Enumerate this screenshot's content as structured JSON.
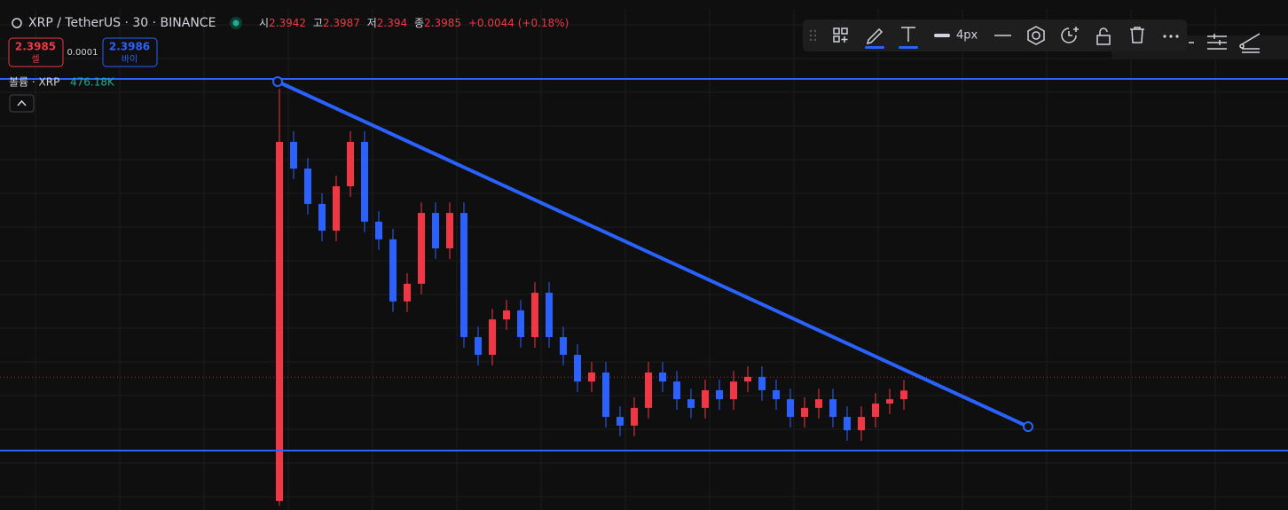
{
  "chart_data": {
    "type": "candlestick",
    "title": "XRP / TetherUS · 30 · BINANCE",
    "ohlc_labels": {
      "open": "시",
      "high": "고",
      "low": "저",
      "close": "종"
    },
    "ohlc": {
      "open": 2.3942,
      "high": 2.3987,
      "low": 2.394,
      "close": 2.3985
    },
    "change": "+0.0044 (+0.18%)",
    "sell": {
      "price": 2.3985,
      "label": "셀"
    },
    "spread": 0.0001,
    "buy": {
      "price": 2.3986,
      "label": "바이"
    },
    "volume_label": "볼륨 · XRP",
    "volume": "476.18K",
    "line_width": "4px",
    "up_color": "#f23645",
    "down_color": "#2962ff",
    "ylim": [
      2.36,
      2.52
    ],
    "candles": [
      [
        2.3586,
        2.4914,
        2.3571,
        2.4743
      ],
      [
        2.4743,
        2.4777,
        2.4623,
        2.4657
      ],
      [
        2.4657,
        2.4691,
        2.4509,
        2.4543
      ],
      [
        2.4543,
        2.4577,
        2.4423,
        2.4457
      ],
      [
        2.4457,
        2.4634,
        2.4423,
        2.46
      ],
      [
        2.46,
        2.4777,
        2.4566,
        2.4743
      ],
      [
        2.4743,
        2.4777,
        2.4452,
        2.4486
      ],
      [
        2.4486,
        2.452,
        2.4395,
        2.4429
      ],
      [
        2.4429,
        2.4463,
        2.4195,
        2.4229
      ],
      [
        2.4229,
        2.432,
        2.4195,
        2.4286
      ],
      [
        2.4286,
        2.4548,
        2.4252,
        2.4514
      ],
      [
        2.4514,
        2.4548,
        2.4366,
        2.44
      ],
      [
        2.44,
        2.4548,
        2.4366,
        2.4514
      ],
      [
        2.4514,
        2.4548,
        2.408,
        2.4114
      ],
      [
        2.4114,
        2.4148,
        2.4023,
        2.4057
      ],
      [
        2.4057,
        2.4205,
        2.4023,
        2.4171
      ],
      [
        2.4171,
        2.4234,
        2.4137,
        2.42
      ],
      [
        2.42,
        2.4234,
        2.408,
        2.4114
      ],
      [
        2.4114,
        2.4291,
        2.408,
        2.4257
      ],
      [
        2.4257,
        2.4291,
        2.408,
        2.4114
      ],
      [
        2.4114,
        2.4148,
        2.4023,
        2.4057
      ],
      [
        2.4057,
        2.4091,
        2.3937,
        2.3971
      ],
      [
        2.3971,
        2.4034,
        2.3937,
        2.4
      ],
      [
        2.4,
        2.4034,
        2.3823,
        2.3857
      ],
      [
        2.3857,
        2.3891,
        2.3795,
        2.3829
      ],
      [
        2.3829,
        2.392,
        2.3795,
        2.3886
      ],
      [
        2.3886,
        2.4034,
        2.3852,
        2.4
      ],
      [
        2.4,
        2.4034,
        2.3937,
        2.3971
      ],
      [
        2.3971,
        2.4005,
        2.388,
        2.3914
      ],
      [
        2.3914,
        2.3948,
        2.3852,
        2.3886
      ],
      [
        2.3886,
        2.3977,
        2.3852,
        2.3943
      ],
      [
        2.3943,
        2.3977,
        2.388,
        2.3914
      ],
      [
        2.3914,
        2.4005,
        2.388,
        2.3971
      ],
      [
        2.3971,
        2.402,
        2.3937,
        2.3986
      ],
      [
        2.3986,
        2.402,
        2.3909,
        2.3943
      ],
      [
        2.3943,
        2.3977,
        2.388,
        2.3914
      ],
      [
        2.3914,
        2.3948,
        2.3823,
        2.3857
      ],
      [
        2.3857,
        2.392,
        2.3823,
        2.3886
      ],
      [
        2.3886,
        2.3948,
        2.3852,
        2.3914
      ],
      [
        2.3914,
        2.3948,
        2.3823,
        2.3857
      ],
      [
        2.3857,
        2.3891,
        2.378,
        2.3814
      ],
      [
        2.3814,
        2.3891,
        2.378,
        2.3857
      ],
      [
        2.3857,
        2.3934,
        2.3823,
        2.39
      ],
      [
        2.39,
        2.3948,
        2.3866,
        2.3914
      ],
      [
        2.3914,
        2.3976,
        2.388,
        2.3942
      ]
    ]
  }
}
